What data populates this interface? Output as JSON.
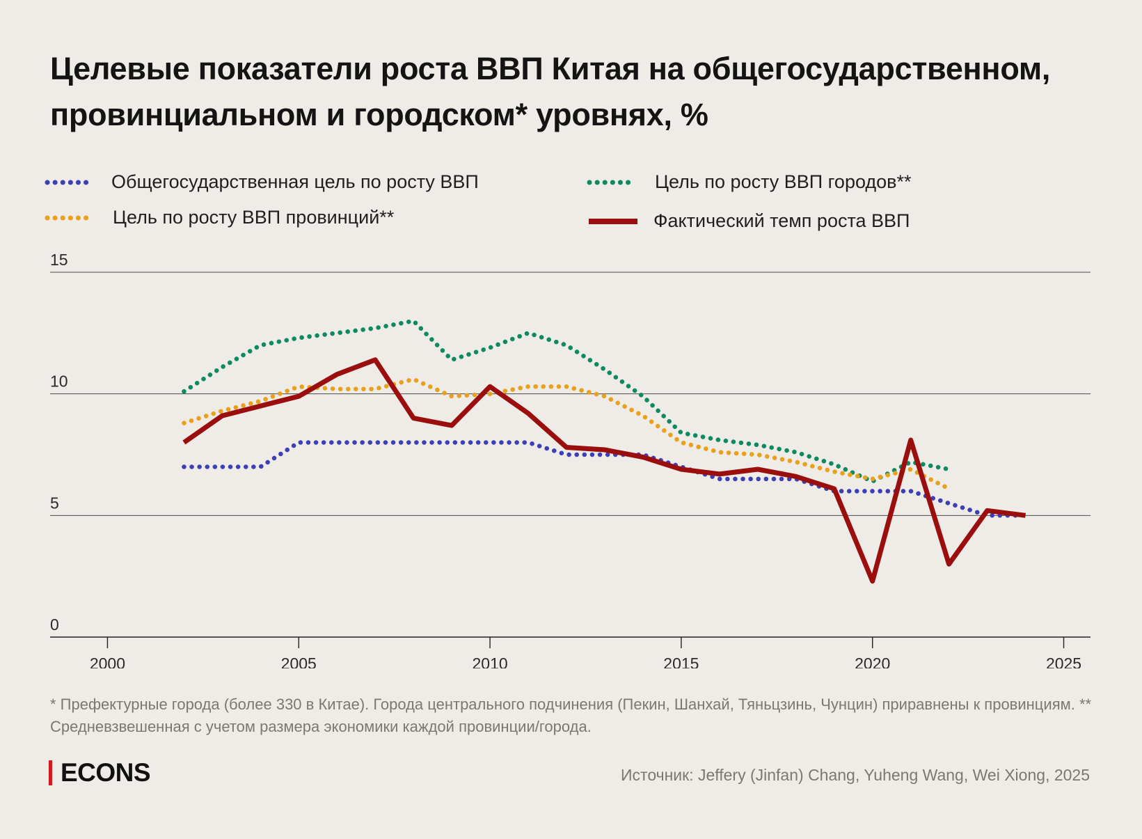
{
  "title": "Целевые показатели роста ВВП Китая на общегосударственном, провинциальном и городском* уровнях, %",
  "legend": {
    "national": "Общегосударственная цель по росту ВВП",
    "province": "Цель по росту ВВП провинций**",
    "city": "Цель по росту ВВП городов**",
    "actual": "Фактический темп роста ВВП"
  },
  "footnote": "* Префектурные города (более 330 в Китае). Города центрального подчинения (Пекин, Шанхай, Тяньцзинь, Чунцин) приравнены к провинциям. ** Средневзвешенная с учетом размера экономики каждой провинции/города.",
  "logo": "ECONS",
  "source": "Источник: Jeffery (Jinfan) Chang, Yuheng Wang, Wei Xiong, 2025",
  "colors": {
    "national": "#3d3fb5",
    "province": "#e8a11c",
    "city": "#0e8a62",
    "actual": "#9b0e0e",
    "grid": "#4a4a4a",
    "logo_bar": "#d21a1a"
  },
  "chart_data": {
    "type": "line",
    "title": "Целевые показатели роста ВВП Китая на общегосударственном, провинциальном и городском* уровнях, %",
    "xlabel": "",
    "ylabel": "%",
    "xlim": [
      1998.5,
      2025.7
    ],
    "ylim": [
      0,
      15
    ],
    "x_ticks": [
      2000,
      2005,
      2010,
      2015,
      2020,
      2025
    ],
    "y_ticks": [
      0,
      5,
      10,
      15
    ],
    "series": [
      {
        "key": "city",
        "name": "Цель по росту ВВП городов**",
        "style": "dotted",
        "x": [
          2002,
          2003,
          2004,
          2005,
          2006,
          2007,
          2008,
          2009,
          2010,
          2011,
          2012,
          2013,
          2014,
          2015,
          2016,
          2017,
          2018,
          2019,
          2020,
          2021,
          2022
        ],
        "values": [
          10.1,
          11.1,
          12.0,
          12.3,
          12.5,
          12.7,
          13.0,
          11.4,
          11.9,
          12.5,
          12.0,
          11.0,
          9.9,
          8.4,
          8.1,
          7.9,
          7.6,
          7.1,
          6.4,
          7.2,
          6.9
        ]
      },
      {
        "key": "province",
        "name": "Цель по росту ВВП провинций**",
        "style": "dotted",
        "x": [
          2002,
          2003,
          2004,
          2005,
          2006,
          2007,
          2008,
          2009,
          2010,
          2011,
          2012,
          2013,
          2014,
          2015,
          2016,
          2017,
          2018,
          2019,
          2020,
          2021,
          2022
        ],
        "values": [
          8.8,
          9.3,
          9.7,
          10.3,
          10.2,
          10.2,
          10.6,
          9.9,
          10.0,
          10.3,
          10.3,
          9.9,
          9.1,
          8.0,
          7.6,
          7.5,
          7.2,
          6.8,
          6.5,
          6.9,
          6.1
        ]
      },
      {
        "key": "national",
        "name": "Общегосударственная цель по росту ВВП",
        "style": "dotted",
        "x": [
          2002,
          2003,
          2004,
          2005,
          2006,
          2007,
          2008,
          2009,
          2010,
          2011,
          2012,
          2013,
          2014,
          2015,
          2016,
          2017,
          2018,
          2019,
          2021,
          2022,
          2023,
          2024
        ],
        "values": [
          7.0,
          7.0,
          7.0,
          8.0,
          8.0,
          8.0,
          8.0,
          8.0,
          8.0,
          8.0,
          7.5,
          7.5,
          7.5,
          7.0,
          6.5,
          6.5,
          6.5,
          6.0,
          6.0,
          5.5,
          5.0,
          5.0
        ]
      },
      {
        "key": "actual",
        "name": "Фактический темп роста ВВП",
        "style": "solid",
        "x": [
          2002,
          2003,
          2004,
          2005,
          2006,
          2007,
          2008,
          2009,
          2010,
          2011,
          2012,
          2013,
          2014,
          2015,
          2016,
          2017,
          2018,
          2019,
          2020,
          2021,
          2022,
          2023,
          2024
        ],
        "values": [
          8.0,
          9.1,
          9.5,
          9.9,
          10.8,
          11.4,
          9.0,
          8.7,
          10.3,
          9.2,
          7.8,
          7.7,
          7.4,
          6.9,
          6.7,
          6.9,
          6.6,
          6.1,
          2.3,
          8.1,
          3.0,
          5.2,
          5.0
        ]
      }
    ]
  }
}
